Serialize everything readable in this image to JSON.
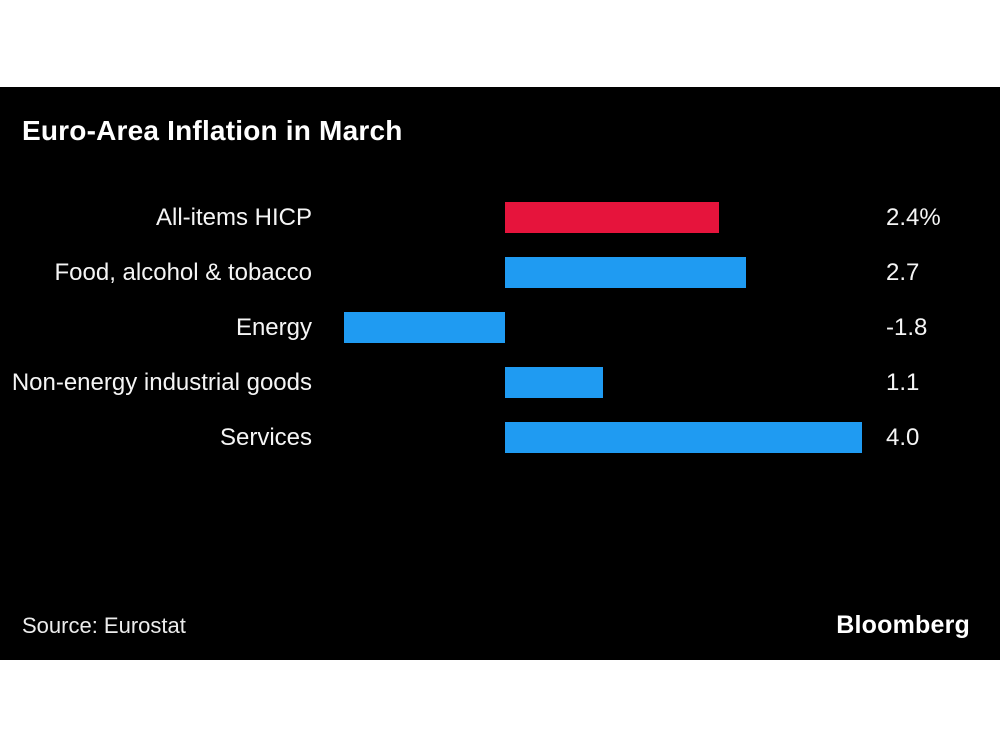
{
  "panel": {
    "title": "Euro-Area Inflation in March",
    "source": "Source: Eurostat",
    "brand": "Bloomberg"
  },
  "colors": {
    "page_background": "#ffffff",
    "panel_background": "#000000",
    "highlight_bar": "#e6143c",
    "default_bar": "#1f9bf2",
    "text": "#ffffff"
  },
  "chart_data": {
    "type": "bar",
    "orientation": "horizontal",
    "title": "Euro-Area Inflation in March",
    "categories": [
      "All-items HICP",
      "Food, alcohol & tobacco",
      "Energy",
      "Non-energy industrial goods",
      "Services"
    ],
    "values": [
      2.4,
      2.7,
      -1.8,
      1.1,
      4.0
    ],
    "value_labels": [
      "2.4%",
      "2.7",
      "-1.8",
      "1.1",
      "4.0"
    ],
    "bar_colors": [
      "#e6143c",
      "#1f9bf2",
      "#1f9bf2",
      "#1f9bf2",
      "#1f9bf2"
    ],
    "xlim": [
      -1.8,
      4.0
    ],
    "baseline": 0,
    "grid": false,
    "legend": false,
    "axis_ticks_visible": false,
    "source": "Source: Eurostat",
    "brand": "Bloomberg"
  }
}
